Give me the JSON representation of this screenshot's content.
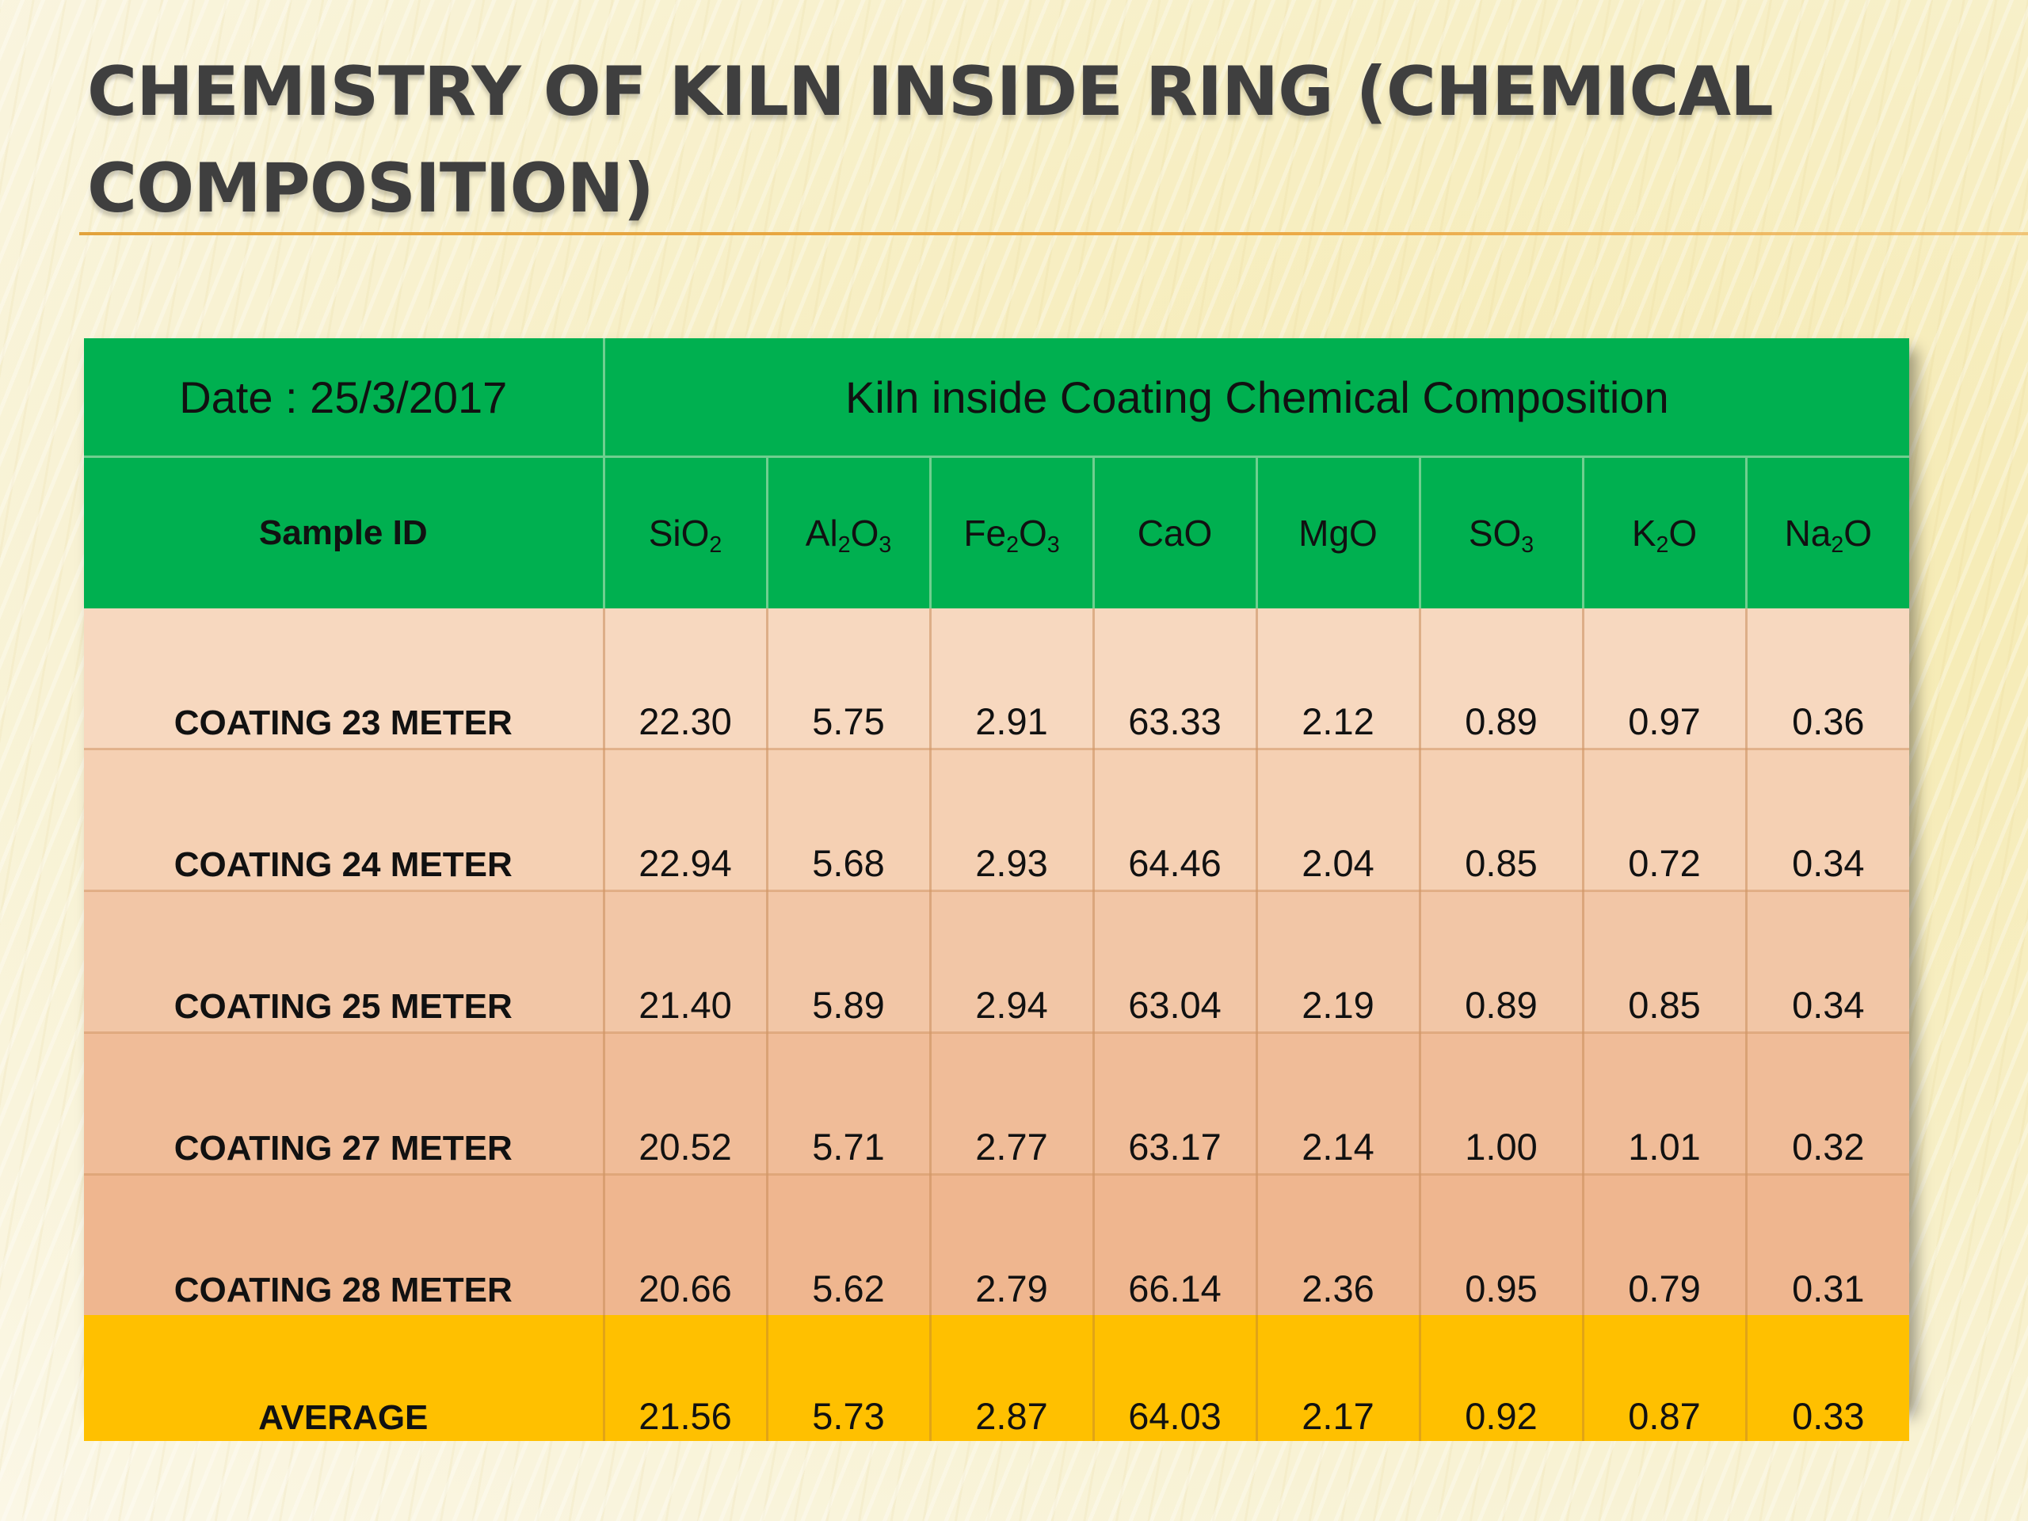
{
  "slide": {
    "title": "CHEMISTRY OF KILN INSIDE RING (CHEMICAL COMPOSITION)",
    "colors": {
      "header_green": "#00b050",
      "average_row": "#ffc000",
      "title_rule": "#eba844"
    }
  },
  "table": {
    "date_label": "Date : 25/3/2017",
    "group_header": "Kiln inside Coating Chemical Composition",
    "sample_id_header": "Sample ID",
    "columns": [
      {
        "base": "SiO",
        "sub": "2",
        "tail": ""
      },
      {
        "base": "Al",
        "sub": "2",
        "tail": "O3"
      },
      {
        "base": "Fe",
        "sub": "2",
        "tail": "O3"
      },
      {
        "base": "CaO",
        "sub": "",
        "tail": ""
      },
      {
        "base": "MgO",
        "sub": "",
        "tail": ""
      },
      {
        "base": "SO",
        "sub": "3",
        "tail": ""
      },
      {
        "base": "K",
        "sub": "2",
        "tail": "O"
      },
      {
        "base": "Na",
        "sub": "2",
        "tail": "O"
      }
    ],
    "rows": [
      {
        "id": "COATING 23 METER",
        "values": [
          "22.30",
          "5.75",
          "2.91",
          "63.33",
          "2.12",
          "0.89",
          "0.97",
          "0.36"
        ]
      },
      {
        "id": "COATING 24 METER",
        "values": [
          "22.94",
          "5.68",
          "2.93",
          "64.46",
          "2.04",
          "0.85",
          "0.72",
          "0.34"
        ]
      },
      {
        "id": "COATING 25 METER",
        "values": [
          "21.40",
          "5.89",
          "2.94",
          "63.04",
          "2.19",
          "0.89",
          "0.85",
          "0.34"
        ]
      },
      {
        "id": "COATING 27 METER",
        "values": [
          "20.52",
          "5.71",
          "2.77",
          "63.17",
          "2.14",
          "1.00",
          "1.01",
          "0.32"
        ]
      },
      {
        "id": "COATING 28 METER",
        "values": [
          "20.66",
          "5.62",
          "2.79",
          "66.14",
          "2.36",
          "0.95",
          "0.79",
          "0.31"
        ]
      }
    ],
    "average": {
      "id": "AVERAGE",
      "values": [
        "21.56",
        "5.73",
        "2.87",
        "64.03",
        "2.17",
        "0.92",
        "0.87",
        "0.33"
      ]
    }
  }
}
